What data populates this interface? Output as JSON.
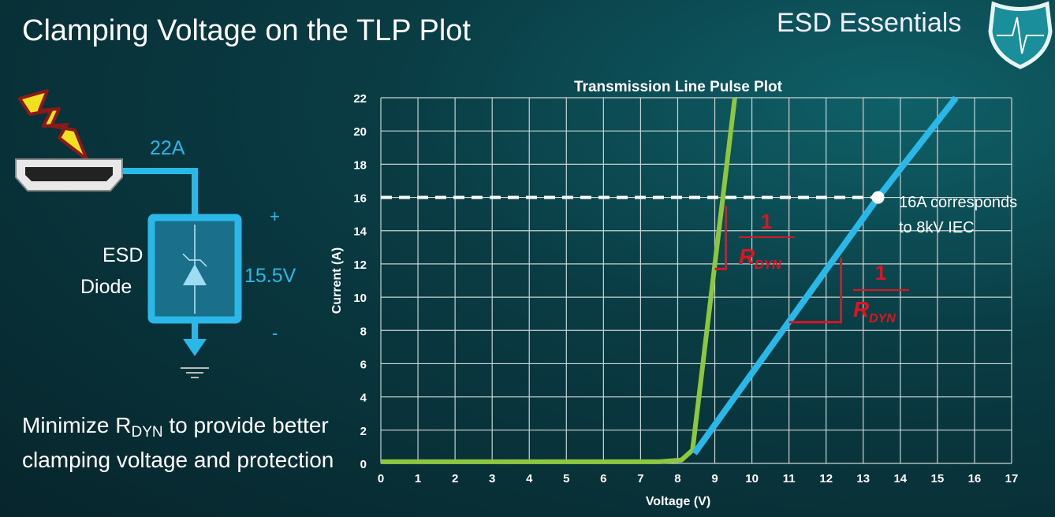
{
  "slide": {
    "title": "Clamping Voltage on the TLP Plot",
    "brand": "ESD Essentials",
    "bullet_pre": "Minimize R",
    "bullet_sub": "DYN",
    "bullet_post": " to provide better clamping voltage and protection"
  },
  "diagram": {
    "current_label": "22A",
    "device_label_1": "ESD",
    "device_label_2": "Diode",
    "voltage_label": "15.5V",
    "plus": "+",
    "minus": "-"
  },
  "colors": {
    "accent": "#29b8e8",
    "green": "#8dc63f",
    "red": "#e0141e"
  },
  "chart_data": {
    "type": "line",
    "title": "Transmission Line Pulse Plot",
    "xlabel": "Voltage (V)",
    "ylabel": "Current (A)",
    "xlim": [
      0,
      17
    ],
    "ylim": [
      0,
      22
    ],
    "grid": true,
    "xticks": [
      0,
      1,
      2,
      3,
      4,
      5,
      6,
      7,
      8,
      9,
      10,
      11,
      12,
      13,
      14,
      15,
      16,
      17
    ],
    "yticks": [
      0,
      2,
      4,
      6,
      8,
      10,
      12,
      14,
      16,
      18,
      20,
      22
    ],
    "series": [
      {
        "color": "#8dc63f",
        "x": [
          0,
          7.5,
          8.1,
          8.4,
          9.54
        ],
        "y": [
          0.1,
          0.1,
          0.2,
          0.8,
          22
        ]
      },
      {
        "color": "#29b8e8",
        "x": [
          8.45,
          13.4,
          15.5
        ],
        "y": [
          0.6,
          16,
          22
        ]
      }
    ],
    "reference_line": {
      "y": 16,
      "style": "dashed",
      "color": "#ffffff"
    },
    "marker": {
      "x": 13.4,
      "y": 16
    },
    "annotation_1": "16A corresponds",
    "annotation_2": "to 8kV IEC",
    "slope_label_num": "1",
    "slope_label_den": "R",
    "slope_label_sub": "DYN",
    "slope_triangles": [
      {
        "x": [
          9.3,
          9.3,
          9.0
        ],
        "y": [
          15.5,
          11.7,
          11.7
        ]
      },
      {
        "x": [
          12.4,
          12.4,
          11.0
        ],
        "y": [
          12.4,
          8.5,
          8.5
        ]
      }
    ]
  }
}
